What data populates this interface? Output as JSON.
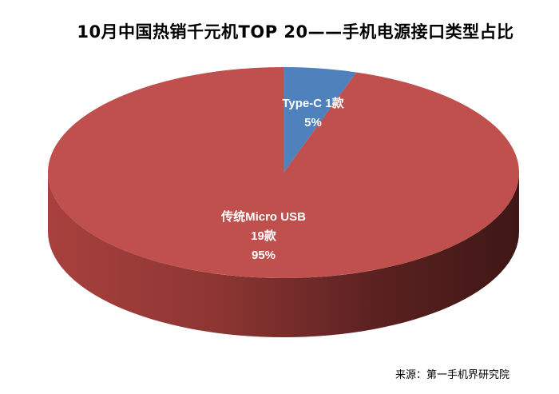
{
  "chart_data": {
    "type": "pie",
    "title": "10月中国热销千元机TOP 20——手机电源接口类型占比",
    "source": "来源：第一手机界研究院",
    "style": "3d",
    "slices": [
      {
        "name": "Type-C",
        "count": 1,
        "count_label": "1款",
        "percent": 5,
        "percent_label": "5%",
        "color": "#4f81bd",
        "side_color": "#3a5f8c",
        "label_line1": "Type-C  1款",
        "label_line2": "5%"
      },
      {
        "name": "传统Micro USB",
        "count": 19,
        "count_label": "19款",
        "percent": 95,
        "percent_label": "95%",
        "color": "#c0504d",
        "side_color": "#7a2e2c",
        "label_line1": "传统Micro USB",
        "label_line2": "19款",
        "label_line3": "95%"
      }
    ]
  }
}
